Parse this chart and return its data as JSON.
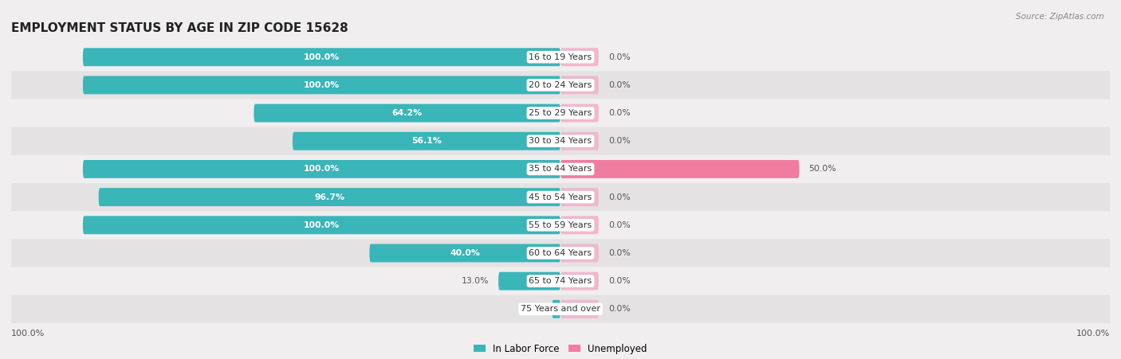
{
  "title": "EMPLOYMENT STATUS BY AGE IN ZIP CODE 15628",
  "source": "Source: ZipAtlas.com",
  "categories": [
    "16 to 19 Years",
    "20 to 24 Years",
    "25 to 29 Years",
    "30 to 34 Years",
    "35 to 44 Years",
    "45 to 54 Years",
    "55 to 59 Years",
    "60 to 64 Years",
    "65 to 74 Years",
    "75 Years and over"
  ],
  "labor_force": [
    100.0,
    100.0,
    64.2,
    56.1,
    100.0,
    96.7,
    100.0,
    40.0,
    13.0,
    1.8
  ],
  "unemployed": [
    0.0,
    0.0,
    0.0,
    0.0,
    50.0,
    0.0,
    0.0,
    0.0,
    0.0,
    0.0
  ],
  "labor_force_color": "#3ab5b8",
  "unemployed_color": "#f07ca0",
  "unemployed_light_color": "#f0b8cc",
  "row_bg_color_light": "#f0eeee",
  "row_bg_color_dark": "#e4e2e2",
  "title_fontsize": 11,
  "max_value": 100.0,
  "left_axis_label": "100.0%",
  "right_axis_label": "100.0%",
  "legend_labor": "In Labor Force",
  "legend_unemployed": "Unemployed"
}
